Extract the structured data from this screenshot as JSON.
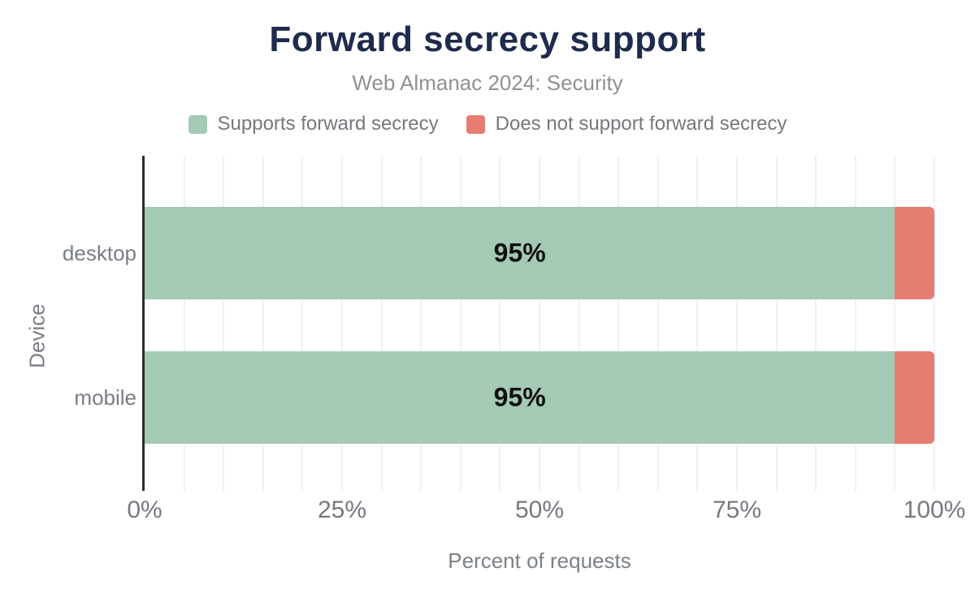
{
  "page": {
    "background": "#ffffff"
  },
  "colors": {
    "title": "#1e2b4d",
    "subtitle": "#8f9194",
    "axis_text": "#787d84",
    "axis_line": "#2d2d2d",
    "gridline": "#f1f1f4",
    "bar_label": "#101010",
    "supports": "#a4c9b5",
    "not_supports": "#e67d72"
  },
  "chart_data": {
    "type": "bar",
    "orientation": "horizontal",
    "stacked": true,
    "title": "Forward secrecy support",
    "subtitle": "Web Almanac 2024: Security",
    "xlabel": "Percent of requests",
    "ylabel": "Device",
    "categories": [
      "desktop",
      "mobile"
    ],
    "series": [
      {
        "name": "Supports forward secrecy",
        "color": "#a4c9b5",
        "values": [
          95,
          95
        ]
      },
      {
        "name": "Does not support forward secrecy",
        "color": "#e67d72",
        "values": [
          5,
          5
        ]
      }
    ],
    "data_labels": [
      "95%",
      "95%"
    ],
    "xlim": [
      0,
      100
    ],
    "xticks": [
      {
        "value": 0,
        "label": "0%"
      },
      {
        "value": 25,
        "label": "25%"
      },
      {
        "value": 50,
        "label": "50%"
      },
      {
        "value": 75,
        "label": "75%"
      },
      {
        "value": 100,
        "label": "100%"
      }
    ],
    "grid": {
      "show": true,
      "interval": 5
    },
    "legend_position": "top"
  }
}
